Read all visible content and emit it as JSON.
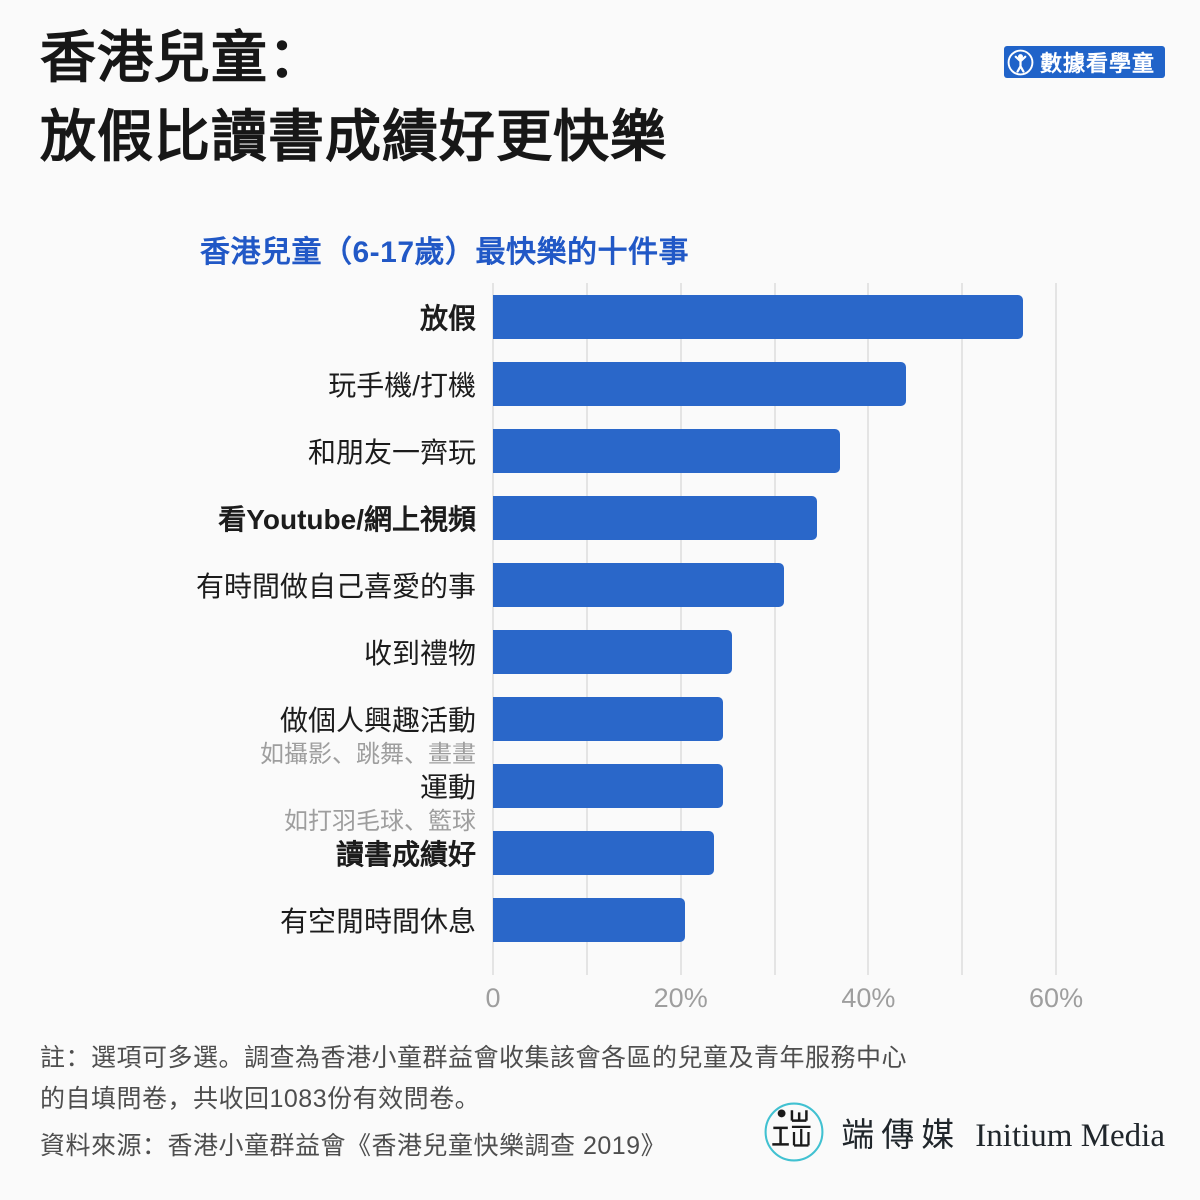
{
  "header": {
    "title_line1": "香港兒童：",
    "title_line2": "放假比讀書成績好更快樂",
    "badge_label": "數據看學童"
  },
  "chart_data": {
    "type": "bar",
    "orientation": "horizontal",
    "title": "香港兒童（6-17歲）最快樂的十件事",
    "value_unit": "percent",
    "xlim": [
      0,
      65
    ],
    "grid": true,
    "legend": false,
    "grid_values": [
      0,
      10,
      20,
      30,
      40,
      50,
      60
    ],
    "x_ticks": [
      {
        "value": 0,
        "label": "0"
      },
      {
        "value": 20,
        "label": "20%"
      },
      {
        "value": 40,
        "label": "40%"
      },
      {
        "value": 60,
        "label": "60%"
      }
    ],
    "items": [
      {
        "label": "放假",
        "sublabel": "",
        "bold": true,
        "value": 56.5
      },
      {
        "label": "玩手機/打機",
        "sublabel": "",
        "bold": false,
        "value": 44
      },
      {
        "label": "和朋友一齊玩",
        "sublabel": "",
        "bold": false,
        "value": 37
      },
      {
        "label": "看Youtube/網上視頻",
        "sublabel": "",
        "bold": true,
        "value": 34.5
      },
      {
        "label": "有時間做自己喜愛的事",
        "sublabel": "",
        "bold": false,
        "value": 31
      },
      {
        "label": "收到禮物",
        "sublabel": "",
        "bold": false,
        "value": 25.5
      },
      {
        "label": "做個人興趣活動",
        "sublabel": "如攝影、跳舞、畫畫",
        "bold": false,
        "value": 24.5
      },
      {
        "label": "運動",
        "sublabel": "如打羽毛球、籃球",
        "bold": false,
        "value": 24.5
      },
      {
        "label": "讀書成績好",
        "sublabel": "",
        "bold": true,
        "value": 23.5
      },
      {
        "label": "有空閒時間休息",
        "sublabel": "",
        "bold": false,
        "value": 20.5
      }
    ]
  },
  "footer": {
    "note_line1": "註：選項可多選。調查為香港小童群益會收集該會各區的兒童及青年服務中心",
    "note_line2": "的自填問卷，共收回1083份有效問卷。",
    "source": "資料來源：香港小童群益會《香港兒童快樂調查 2019》",
    "publisher": {
      "name_zh": "端傳媒",
      "name_en": "Initium Media"
    }
  },
  "colors": {
    "bar": "#2a67c9",
    "chart_title": "#2158c6",
    "badge_bg": "#2063c9",
    "logo_teal": "#41c1d1"
  }
}
